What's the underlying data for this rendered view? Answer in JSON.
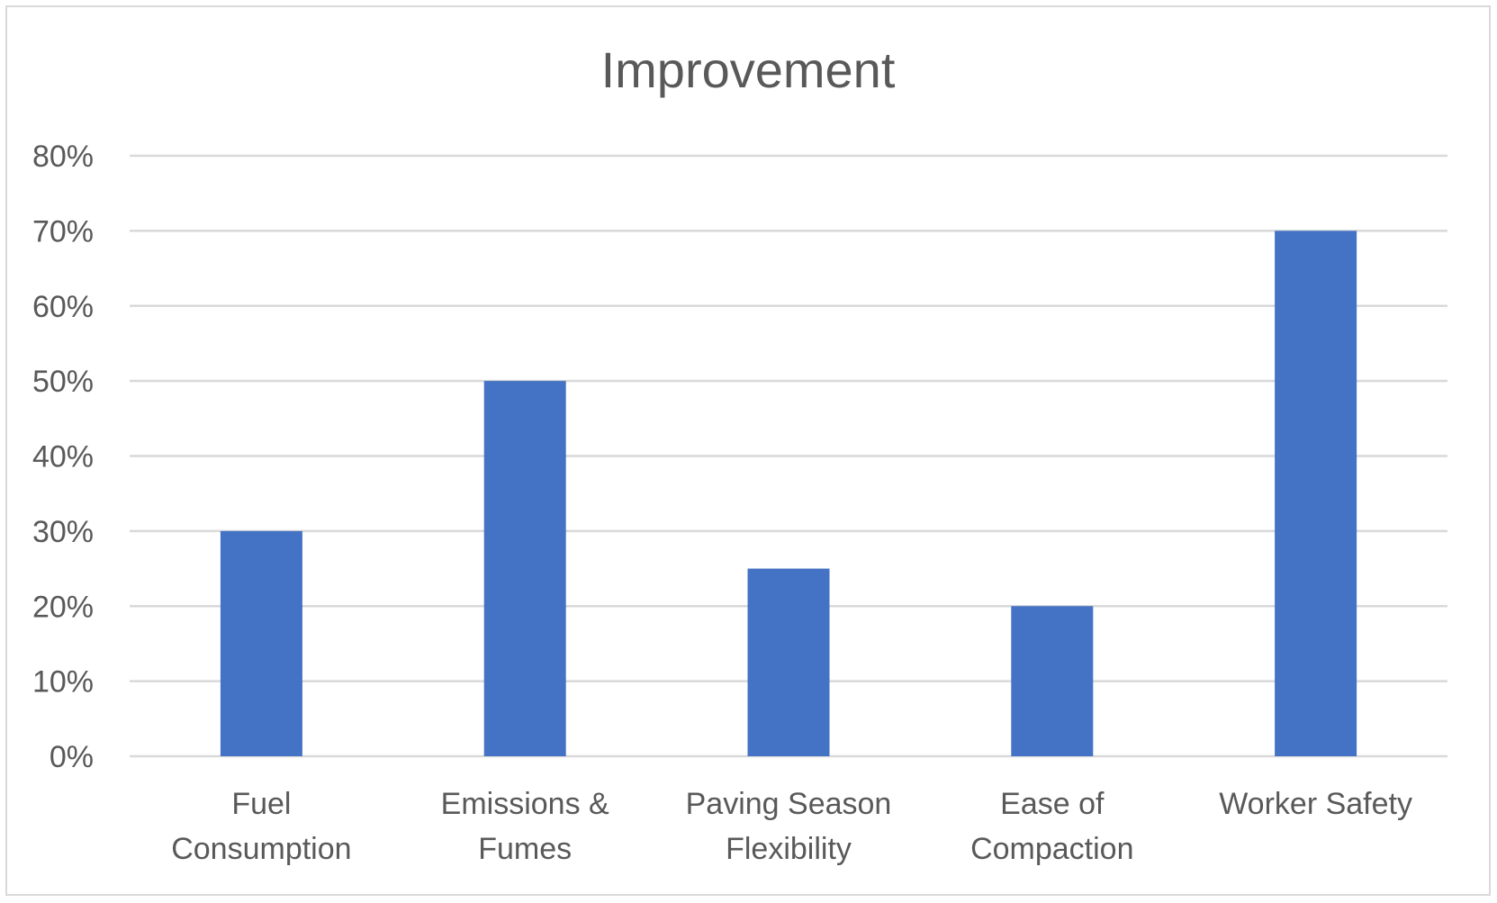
{
  "chart_data": {
    "type": "bar",
    "title": "Improvement",
    "categories": [
      [
        "Fuel",
        "Consumption"
      ],
      [
        "Emissions &",
        "Fumes"
      ],
      [
        "Paving Season",
        "Flexibility"
      ],
      [
        "Ease of",
        "Compaction"
      ],
      [
        "Worker Safety"
      ]
    ],
    "values": [
      30,
      50,
      25,
      20,
      70
    ],
    "ylim": [
      0,
      80
    ],
    "yticks": [
      "0%",
      "10%",
      "20%",
      "30%",
      "40%",
      "50%",
      "60%",
      "70%",
      "80%"
    ],
    "ytick_values": [
      0,
      10,
      20,
      30,
      40,
      50,
      60,
      70,
      80
    ],
    "grid": true,
    "bar_color": "#4472C4",
    "grid_color": "#d9d9d9",
    "text_color": "#595959"
  }
}
